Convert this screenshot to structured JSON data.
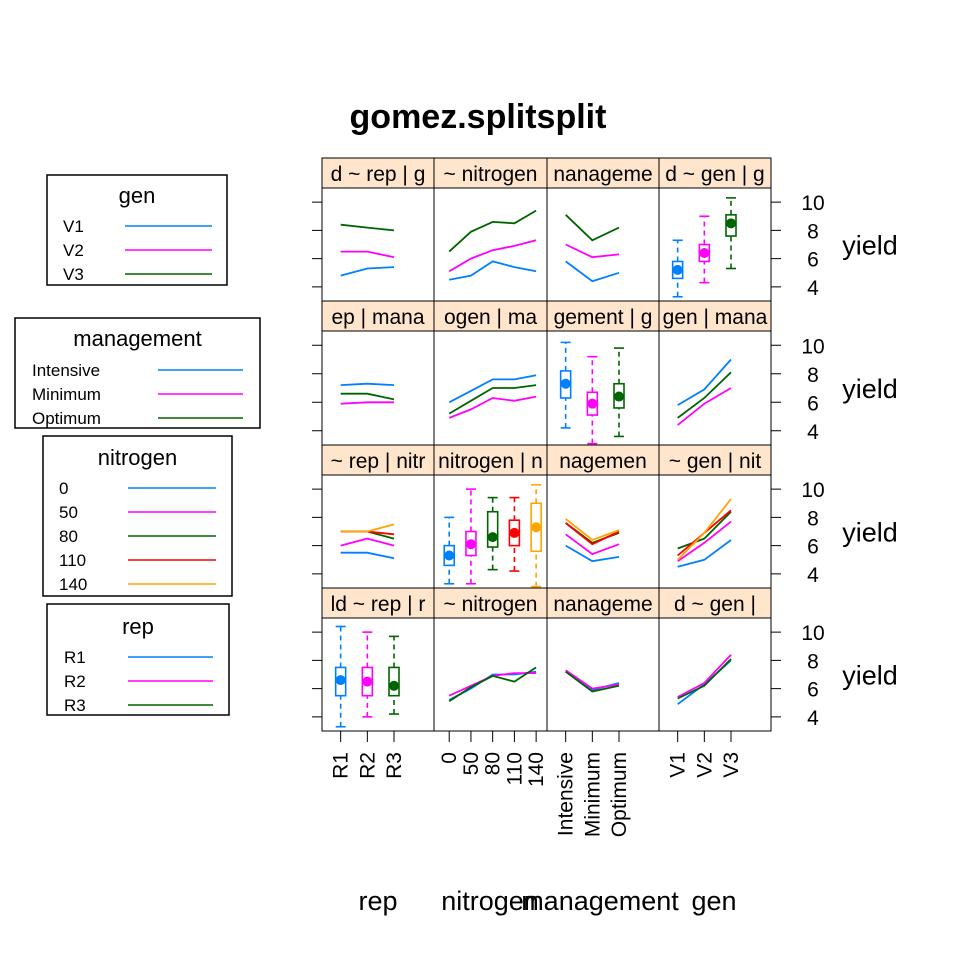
{
  "title": "gomez.splitsplit",
  "y_axis_label": "yield",
  "y_ticks": [
    "10",
    "8",
    "6",
    "4"
  ],
  "factors": [
    {
      "key": "rep",
      "levels": [
        "R1",
        "R2",
        "R3"
      ]
    },
    {
      "key": "nitrogen",
      "levels": [
        "0",
        "50",
        "80",
        "110",
        "140"
      ]
    },
    {
      "key": "management",
      "levels": [
        "Intensive",
        "Minimum",
        "Optimum"
      ]
    },
    {
      "key": "gen",
      "levels": [
        "V1",
        "V2",
        "V3"
      ]
    }
  ],
  "legends": [
    {
      "title": "gen",
      "entries": [
        "V1",
        "V2",
        "V3"
      ]
    },
    {
      "title": "management",
      "entries": [
        "Intensive",
        "Minimum",
        "Optimum"
      ]
    },
    {
      "title": "nitrogen",
      "entries": [
        "0",
        "50",
        "80",
        "110",
        "140"
      ]
    },
    {
      "title": "rep",
      "entries": [
        "R1",
        "R2",
        "R3"
      ]
    }
  ],
  "colors": {
    "series": [
      "#0080ff",
      "#ff00ff",
      "#006400",
      "#ff0000",
      "#ffa500"
    ],
    "strip_background": "#ffe5cc",
    "frame": "#000000"
  },
  "strips": [
    [
      "d ~ rep | g",
      "~ nitrogen",
      "nanageme",
      "d ~ gen | g"
    ],
    [
      "ep | mana",
      "ogen | ma",
      "gement | g",
      "gen | mana"
    ],
    [
      "~ rep | nitr",
      "nitrogen | n",
      "nagemen",
      "~ gen | nit"
    ],
    [
      "ld ~ rep | r",
      "~ nitrogen",
      "nanageme",
      "d ~ gen |"
    ]
  ],
  "chart_data": {
    "type": "scatterplot-matrix",
    "title": "gomez.splitsplit",
    "ylabel": "yield",
    "ylim": [
      3,
      11
    ],
    "yticks": [
      4,
      6,
      8,
      10
    ],
    "grid": false,
    "legend_position": "left",
    "rows": [
      {
        "by": "gen",
        "series_names": [
          "V1",
          "V2",
          "V3"
        ],
        "panels": [
          {
            "x": "rep",
            "type": "line",
            "series": [
              [
                4.8,
                5.3,
                5.4
              ],
              [
                6.5,
                6.5,
                6.1
              ],
              [
                8.4,
                8.2,
                8.0
              ]
            ]
          },
          {
            "x": "nitrogen",
            "type": "line",
            "series": [
              [
                4.5,
                4.8,
                5.8,
                5.4,
                5.1
              ],
              [
                5.1,
                6.0,
                6.6,
                6.9,
                7.3
              ],
              [
                6.5,
                7.9,
                8.6,
                8.5,
                9.4
              ]
            ]
          },
          {
            "x": "management",
            "type": "line",
            "series": [
              [
                5.8,
                4.4,
                5.0
              ],
              [
                7.0,
                6.1,
                6.3
              ],
              [
                9.1,
                7.3,
                8.2
              ]
            ]
          },
          {
            "x": "gen",
            "type": "box",
            "boxes": [
              {
                "min": 3.3,
                "q1": 4.6,
                "median": 5.2,
                "q3": 5.8,
                "max": 7.3
              },
              {
                "min": 4.3,
                "q1": 5.8,
                "median": 6.4,
                "q3": 7.0,
                "max": 9.0
              },
              {
                "min": 5.3,
                "q1": 7.6,
                "median": 8.5,
                "q3": 9.1,
                "max": 10.3
              }
            ]
          }
        ]
      },
      {
        "by": "management",
        "series_names": [
          "Intensive",
          "Minimum",
          "Optimum"
        ],
        "panels": [
          {
            "x": "rep",
            "type": "line",
            "series": [
              [
                7.2,
                7.3,
                7.2
              ],
              [
                5.9,
                6.0,
                6.0
              ],
              [
                6.6,
                6.6,
                6.2
              ]
            ]
          },
          {
            "x": "nitrogen",
            "type": "line",
            "series": [
              [
                6.0,
                6.8,
                7.6,
                7.6,
                7.9
              ],
              [
                4.9,
                5.5,
                6.3,
                6.1,
                6.4
              ],
              [
                5.2,
                6.1,
                7.0,
                7.0,
                7.2
              ]
            ]
          },
          {
            "x": "management",
            "type": "box",
            "boxes": [
              {
                "min": 4.2,
                "q1": 6.3,
                "median": 7.3,
                "q3": 8.2,
                "max": 10.2
              },
              {
                "min": 3.1,
                "q1": 5.1,
                "median": 5.9,
                "q3": 6.7,
                "max": 9.2
              },
              {
                "min": 3.6,
                "q1": 5.6,
                "median": 6.4,
                "q3": 7.3,
                "max": 9.8
              }
            ]
          },
          {
            "x": "gen",
            "type": "line",
            "series": [
              [
                5.8,
                6.9,
                9.0
              ],
              [
                4.4,
                5.9,
                7.0
              ],
              [
                4.9,
                6.3,
                8.1
              ]
            ]
          }
        ]
      },
      {
        "by": "nitrogen",
        "series_names": [
          "0",
          "50",
          "80",
          "110",
          "140"
        ],
        "panels": [
          {
            "x": "rep",
            "type": "line",
            "series": [
              [
                5.5,
                5.5,
                5.1
              ],
              [
                6.0,
                6.5,
                6.0
              ],
              [
                7.0,
                7.0,
                6.5
              ],
              [
                7.0,
                7.0,
                6.8
              ],
              [
                7.0,
                7.0,
                7.5
              ]
            ]
          },
          {
            "x": "nitrogen",
            "type": "box",
            "boxes": [
              {
                "min": 3.3,
                "q1": 4.6,
                "median": 5.3,
                "q3": 6.0,
                "max": 8.0
              },
              {
                "min": 3.3,
                "q1": 5.3,
                "median": 6.1,
                "q3": 7.0,
                "max": 10.0
              },
              {
                "min": 4.3,
                "q1": 5.9,
                "median": 6.6,
                "q3": 8.4,
                "max": 9.4
              },
              {
                "min": 4.2,
                "q1": 6.0,
                "median": 6.9,
                "q3": 7.8,
                "max": 9.4
              },
              {
                "min": 3.1,
                "q1": 5.6,
                "median": 7.3,
                "q3": 9.0,
                "max": 10.3
              }
            ]
          },
          {
            "x": "management",
            "type": "line",
            "series": [
              [
                6.0,
                4.9,
                5.2
              ],
              [
                6.8,
                5.4,
                6.1
              ],
              [
                7.6,
                6.2,
                6.9
              ],
              [
                7.6,
                6.1,
                7.0
              ],
              [
                7.9,
                6.4,
                7.1
              ]
            ]
          },
          {
            "x": "gen",
            "type": "line",
            "series": [
              [
                4.5,
                5.0,
                6.4
              ],
              [
                4.9,
                6.2,
                7.7
              ],
              [
                5.8,
                6.5,
                8.4
              ],
              [
                5.3,
                6.9,
                8.5
              ],
              [
                5.0,
                6.9,
                9.3
              ]
            ]
          }
        ]
      },
      {
        "by": "rep",
        "series_names": [
          "R1",
          "R2",
          "R3"
        ],
        "panels": [
          {
            "x": "rep",
            "type": "box",
            "boxes": [
              {
                "min": 3.3,
                "q1": 5.5,
                "median": 6.6,
                "q3": 7.5,
                "max": 10.4
              },
              {
                "min": 4.0,
                "q1": 5.5,
                "median": 6.5,
                "q3": 7.5,
                "max": 10.0
              },
              {
                "min": 4.2,
                "q1": 5.5,
                "median": 6.2,
                "q3": 7.5,
                "max": 9.7
              }
            ]
          },
          {
            "x": "nitrogen",
            "type": "line",
            "series": [
              [
                5.2,
                6.0,
                7.0,
                7.0,
                7.2
              ],
              [
                5.5,
                6.2,
                6.9,
                7.1,
                7.1
              ],
              [
                5.1,
                6.1,
                6.9,
                6.5,
                7.5
              ]
            ]
          },
          {
            "x": "management",
            "type": "line",
            "series": [
              [
                7.2,
                5.9,
                6.4
              ],
              [
                7.3,
                6.0,
                6.3
              ],
              [
                7.2,
                5.8,
                6.2
              ]
            ]
          },
          {
            "x": "gen",
            "type": "line",
            "series": [
              [
                4.9,
                6.3,
                8.0
              ],
              [
                5.4,
                6.4,
                8.4
              ],
              [
                5.3,
                6.2,
                8.1
              ]
            ]
          }
        ]
      }
    ]
  }
}
